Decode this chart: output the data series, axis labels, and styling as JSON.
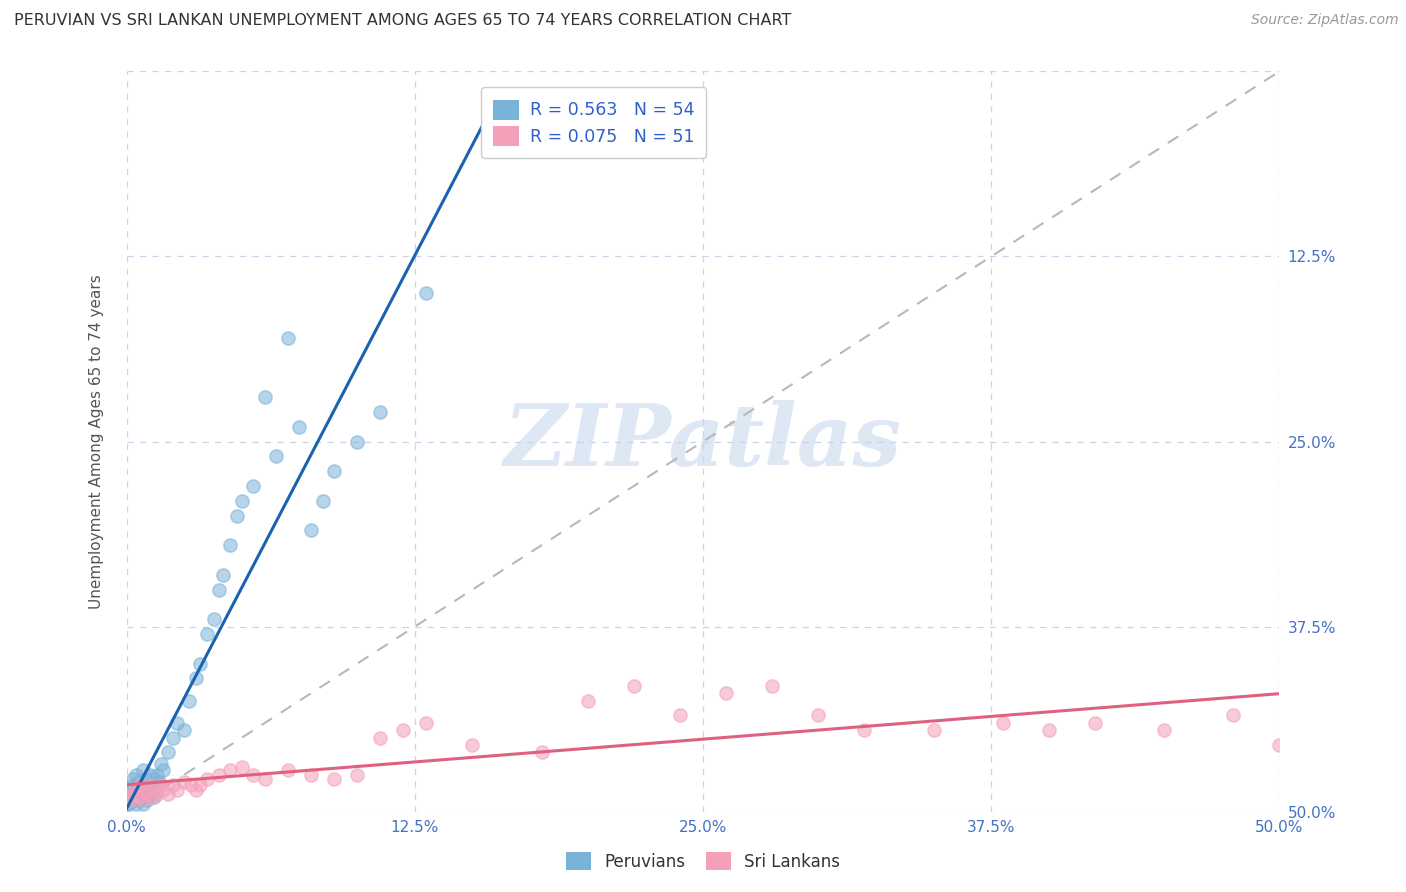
{
  "title": "PERUVIAN VS SRI LANKAN UNEMPLOYMENT AMONG AGES 65 TO 74 YEARS CORRELATION CHART",
  "source": "Source: ZipAtlas.com",
  "ylabel": "Unemployment Among Ages 65 to 74 years",
  "xlim": [
    0.0,
    0.5
  ],
  "ylim": [
    0.0,
    0.5
  ],
  "ticks": [
    0.0,
    0.125,
    0.25,
    0.375,
    0.5
  ],
  "ticklabels": [
    "0.0%",
    "12.5%",
    "25.0%",
    "37.5%",
    "50.0%"
  ],
  "right_ticklabels": [
    "50.0%",
    "37.5%",
    "25.0%",
    "12.5%",
    ""
  ],
  "peruvian_color": "#7ab3d9",
  "srilanka_color": "#f4a0b8",
  "peruvian_R": 0.563,
  "peruvian_N": 54,
  "srilanka_R": 0.075,
  "srilanka_N": 51,
  "diagonal_color": "#b8b8b8",
  "peruvian_line_color": "#1a63b0",
  "srilanka_line_color": "#e06080",
  "watermark": "ZIPatlas",
  "grid_color": "#c8d4e8",
  "legend_text_color": "#3060c8",
  "ylabel_color": "#555555",
  "tick_color": "#4472c4",
  "peru_x": [
    0.001,
    0.002,
    0.002,
    0.003,
    0.003,
    0.003,
    0.004,
    0.004,
    0.004,
    0.005,
    0.005,
    0.006,
    0.006,
    0.007,
    0.007,
    0.007,
    0.008,
    0.008,
    0.009,
    0.009,
    0.01,
    0.01,
    0.011,
    0.012,
    0.012,
    0.013,
    0.014,
    0.015,
    0.016,
    0.018,
    0.02,
    0.022,
    0.025,
    0.027,
    0.03,
    0.032,
    0.035,
    0.038,
    0.04,
    0.042,
    0.045,
    0.048,
    0.05,
    0.055,
    0.06,
    0.065,
    0.07,
    0.075,
    0.08,
    0.085,
    0.09,
    0.1,
    0.11,
    0.13
  ],
  "peru_y": [
    0.005,
    0.008,
    0.015,
    0.012,
    0.018,
    0.022,
    0.005,
    0.012,
    0.025,
    0.01,
    0.02,
    0.008,
    0.018,
    0.005,
    0.015,
    0.028,
    0.01,
    0.022,
    0.008,
    0.018,
    0.012,
    0.025,
    0.015,
    0.01,
    0.022,
    0.025,
    0.02,
    0.032,
    0.028,
    0.04,
    0.05,
    0.06,
    0.055,
    0.075,
    0.09,
    0.1,
    0.12,
    0.13,
    0.15,
    0.16,
    0.18,
    0.2,
    0.21,
    0.22,
    0.28,
    0.24,
    0.32,
    0.26,
    0.19,
    0.21,
    0.23,
    0.25,
    0.27,
    0.35
  ],
  "sri_x": [
    0.001,
    0.002,
    0.003,
    0.004,
    0.005,
    0.006,
    0.007,
    0.008,
    0.009,
    0.01,
    0.011,
    0.012,
    0.013,
    0.015,
    0.016,
    0.018,
    0.02,
    0.022,
    0.025,
    0.028,
    0.03,
    0.032,
    0.035,
    0.04,
    0.045,
    0.05,
    0.055,
    0.06,
    0.07,
    0.08,
    0.09,
    0.1,
    0.11,
    0.12,
    0.13,
    0.15,
    0.18,
    0.2,
    0.22,
    0.24,
    0.26,
    0.28,
    0.3,
    0.32,
    0.35,
    0.38,
    0.4,
    0.42,
    0.45,
    0.48,
    0.5
  ],
  "sri_y": [
    0.01,
    0.008,
    0.012,
    0.015,
    0.01,
    0.018,
    0.008,
    0.015,
    0.012,
    0.018,
    0.01,
    0.015,
    0.012,
    0.018,
    0.015,
    0.012,
    0.018,
    0.015,
    0.02,
    0.018,
    0.015,
    0.018,
    0.022,
    0.025,
    0.028,
    0.03,
    0.025,
    0.022,
    0.028,
    0.025,
    0.022,
    0.025,
    0.05,
    0.055,
    0.06,
    0.045,
    0.04,
    0.075,
    0.085,
    0.065,
    0.08,
    0.085,
    0.065,
    0.055,
    0.055,
    0.06,
    0.055,
    0.06,
    0.055,
    0.065,
    0.045
  ]
}
